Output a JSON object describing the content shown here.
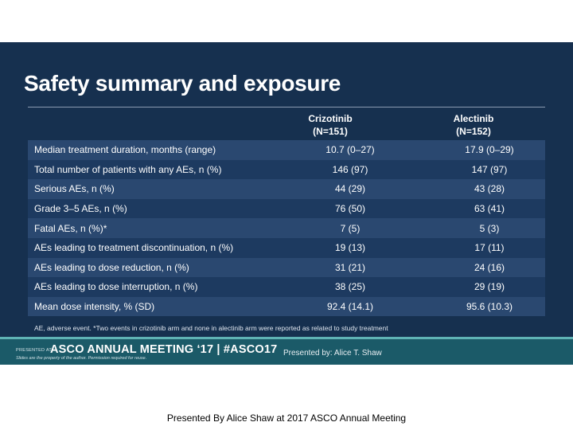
{
  "slide": {
    "title": "Safety summary and exposure",
    "columns": [
      {
        "name": "Crizotinib",
        "n": "(N=151)"
      },
      {
        "name": "Alectinib",
        "n": "(N=152)"
      }
    ],
    "rows": [
      {
        "label": "Median treatment duration, months (range)",
        "v1": "10.7 (0–27)",
        "v2": "17.9 (0–29)"
      },
      {
        "label": "Total number of patients with any AEs, n (%)",
        "v1": "146 (97)",
        "v2": "147 (97)"
      },
      {
        "label": "Serious AEs, n (%)",
        "v1": "44 (29)",
        "v2": "43 (28)"
      },
      {
        "label": "Grade 3–5 AEs, n (%)",
        "v1": "76 (50)",
        "v2": "63 (41)"
      },
      {
        "label": "Fatal AEs, n (%)*",
        "v1": "7 (5)",
        "v2": "5 (3)"
      },
      {
        "label": "AEs leading to treatment discontinuation, n (%)",
        "v1": "19 (13)",
        "v2": "17 (11)"
      },
      {
        "label": "AEs leading to dose reduction, n (%)",
        "v1": "31 (21)",
        "v2": "24 (16)"
      },
      {
        "label": "AEs leading to dose interruption, n (%)",
        "v1": "38 (25)",
        "v2": "29 (19)"
      },
      {
        "label": "Mean dose intensity, % (SD)",
        "v1": "92.4 (14.1)",
        "v2": "95.6 (10.3)"
      }
    ],
    "footnote": "AE, adverse event. *Two events in crizotinib arm and none in alectinib arm were reported as related to study treatment",
    "footer": {
      "presented_at": "PRESENTED AT:",
      "meeting": "ASCO ANNUAL MEETING ‘17 | #ASCO17",
      "disclaimer": "Slides are the property of the author. Permission required for reuse.",
      "presented_by": "Presented by: Alice T. Shaw"
    }
  },
  "caption": "Presented By Alice Shaw at 2017 ASCO Annual Meeting"
}
